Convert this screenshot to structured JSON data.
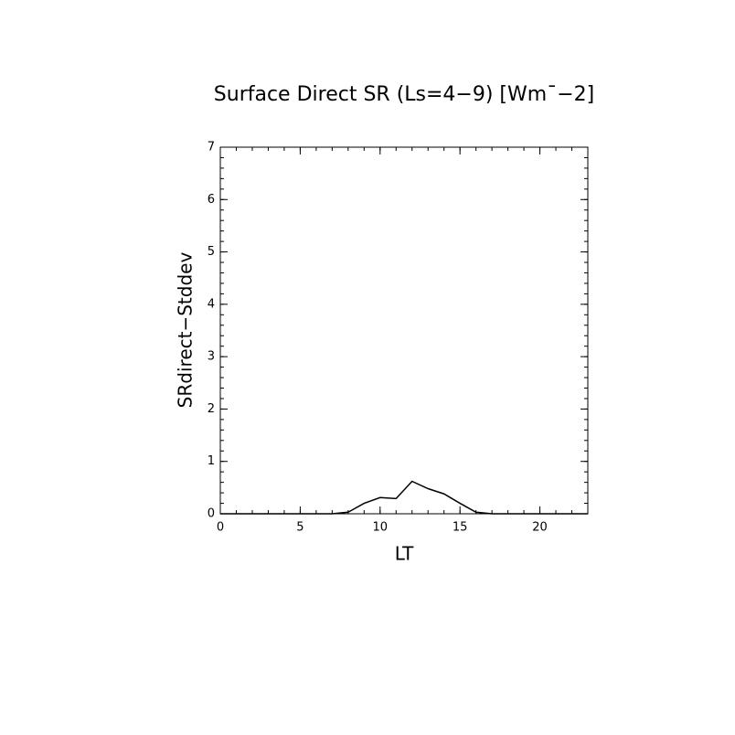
{
  "chart_data": {
    "type": "line",
    "title": "Surface Direct SR (Ls=4−9) [Wm¯−2]",
    "x_label": "LT",
    "y_label": "SRdirect−Stddev",
    "x": [
      0,
      1,
      2,
      3,
      4,
      5,
      6,
      7,
      8,
      9,
      10,
      11,
      12,
      13,
      14,
      15,
      16,
      17,
      18,
      19,
      20,
      21,
      22,
      23
    ],
    "series": [
      {
        "name": "SRdirect-Stddev",
        "color": "#000000",
        "values": [
          0,
          0,
          0,
          0,
          0,
          0,
          0,
          0,
          0.03,
          0.2,
          0.31,
          0.29,
          0.62,
          0.48,
          0.38,
          0.2,
          0.03,
          0,
          0,
          0,
          0,
          0,
          0,
          0
        ]
      }
    ],
    "xlim": [
      0,
      23
    ],
    "xticks": [
      0,
      5,
      10,
      15,
      20
    ],
    "ylim": [
      0,
      7
    ],
    "yticks": [
      0,
      1,
      2,
      3,
      4,
      5,
      6,
      7
    ]
  }
}
